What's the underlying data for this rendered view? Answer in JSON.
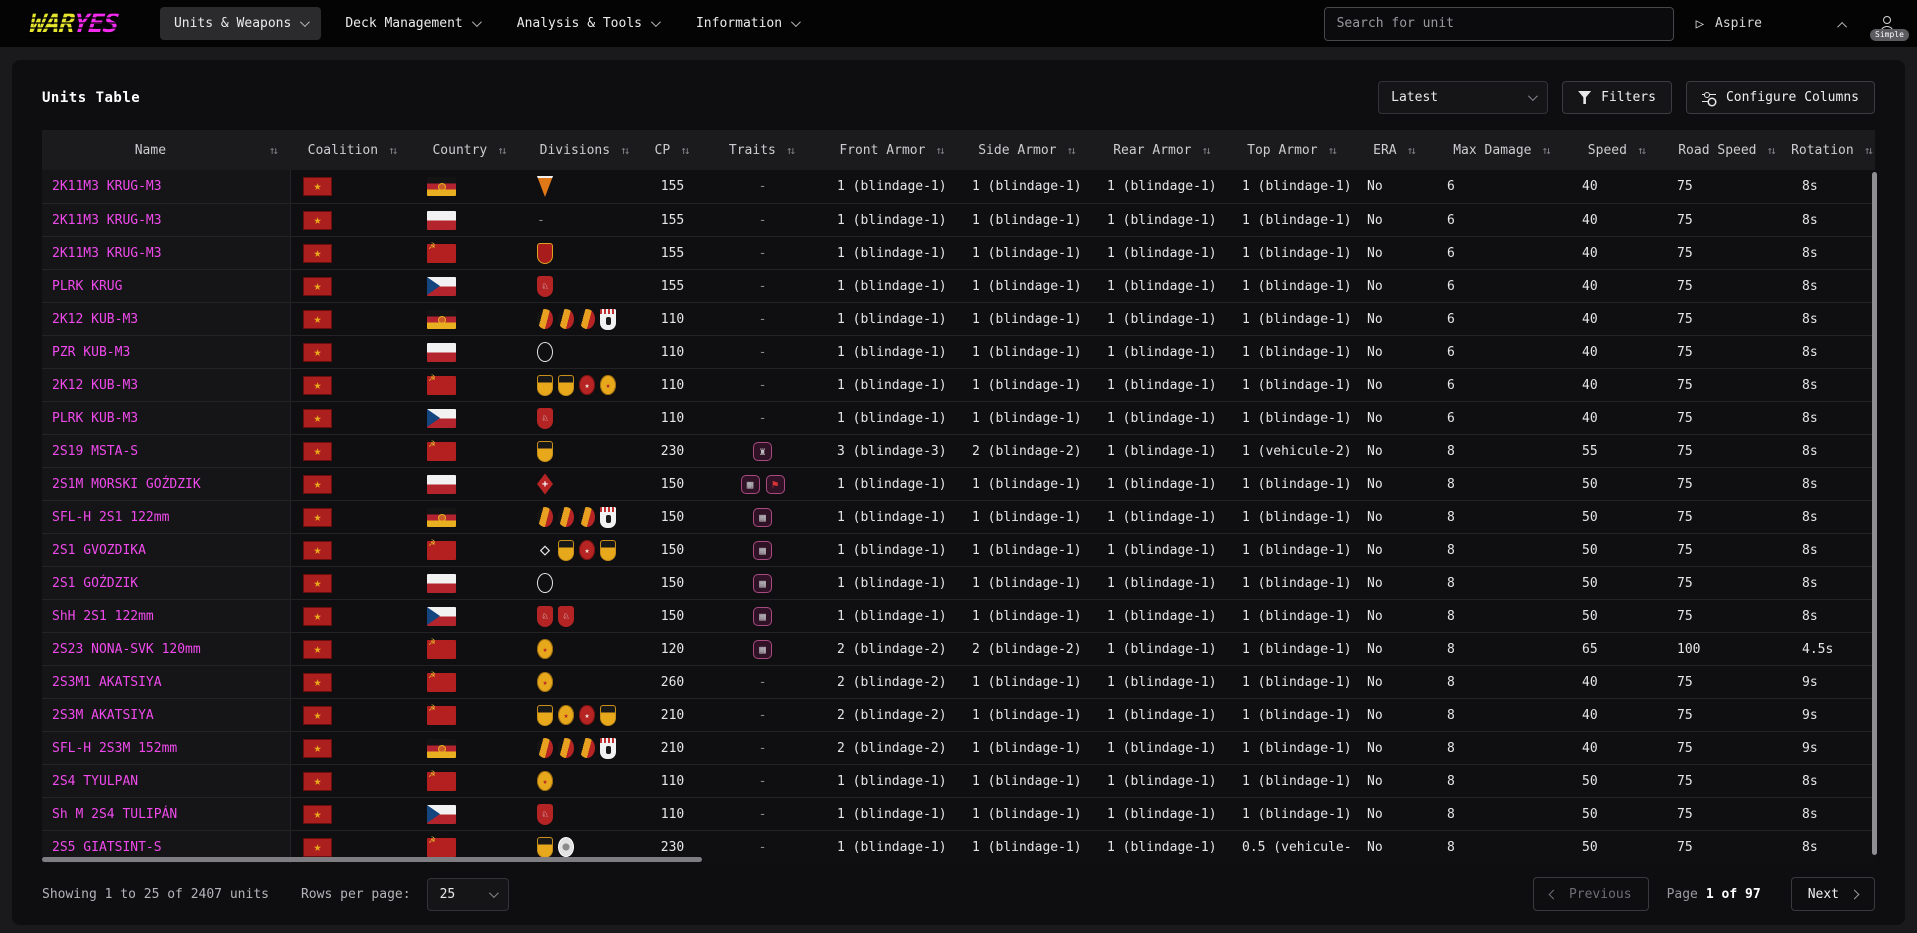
{
  "brand": {
    "war": "WAR",
    "yes": "YES"
  },
  "colors": {
    "logo_yellow": "#e6e62e",
    "logo_magenta": "#f52bf0",
    "unit_link": "#f04aec",
    "trait_border": "#a84a80"
  },
  "nav": [
    {
      "label": "Units & Weapons",
      "active": true
    },
    {
      "label": "Deck Management",
      "active": false
    },
    {
      "label": "Analysis & Tools",
      "active": false
    },
    {
      "label": "Information",
      "active": false
    }
  ],
  "topbar": {
    "search_placeholder": "Search for unit",
    "aspire_label": "Aspire",
    "user_badge": "Simple"
  },
  "page": {
    "title": "Units Table",
    "version_selected": "Latest",
    "filters_label": "Filters",
    "configure_label": "Configure Columns"
  },
  "table": {
    "sort_glyph": "↑↓",
    "columns": [
      {
        "key": "name",
        "label": "Name"
      },
      {
        "key": "coalition",
        "label": "Coalition"
      },
      {
        "key": "country",
        "label": "Country"
      },
      {
        "key": "divisions",
        "label": "Divisions"
      },
      {
        "key": "cp",
        "label": "CP"
      },
      {
        "key": "traits",
        "label": "Traits"
      },
      {
        "key": "front_armor",
        "label": "Front Armor"
      },
      {
        "key": "side_armor",
        "label": "Side Armor"
      },
      {
        "key": "rear_armor",
        "label": "Rear Armor"
      },
      {
        "key": "top_armor",
        "label": "Top Armor"
      },
      {
        "key": "era",
        "label": "ERA"
      },
      {
        "key": "max_damage",
        "label": "Max Damage"
      },
      {
        "key": "speed",
        "label": "Speed"
      },
      {
        "key": "road_speed",
        "label": "Road Speed"
      },
      {
        "key": "rotation",
        "label": "Rotation"
      }
    ],
    "rows": [
      {
        "name": "2K11M3 KRUG-M3",
        "coalition": "pact",
        "country": "ddr",
        "divisions": [
          "pennant"
        ],
        "cp": "155",
        "traits": [],
        "front_armor": "1 (blindage-1)",
        "side_armor": "1 (blindage-1)",
        "rear_armor": "1 (blindage-1)",
        "top_armor": "1 (blindage-1)",
        "era": "No",
        "max_damage": "6",
        "speed": "40",
        "road_speed": "75",
        "rotation": "8s"
      },
      {
        "name": "2K11M3 KRUG-M3",
        "coalition": "pact",
        "country": "pol",
        "divisions": [],
        "cp": "155",
        "traits": [],
        "front_armor": "1 (blindage-1)",
        "side_armor": "1 (blindage-1)",
        "rear_armor": "1 (blindage-1)",
        "top_armor": "1 (blindage-1)",
        "era": "No",
        "max_damage": "6",
        "speed": "40",
        "road_speed": "75",
        "rotation": "8s"
      },
      {
        "name": "2K11M3 KRUG-M3",
        "coalition": "pact",
        "country": "sov",
        "divisions": [
          "shield-red"
        ],
        "cp": "155",
        "traits": [],
        "front_armor": "1 (blindage-1)",
        "side_armor": "1 (blindage-1)",
        "rear_armor": "1 (blindage-1)",
        "top_armor": "1 (blindage-1)",
        "era": "No",
        "max_damage": "6",
        "speed": "40",
        "road_speed": "75",
        "rotation": "8s"
      },
      {
        "name": "PLRK KRUG",
        "coalition": "pact",
        "country": "cz",
        "divisions": [
          "cz"
        ],
        "cp": "155",
        "traits": [],
        "front_armor": "1 (blindage-1)",
        "side_armor": "1 (blindage-1)",
        "rear_armor": "1 (blindage-1)",
        "top_armor": "1 (blindage-1)",
        "era": "No",
        "max_damage": "6",
        "speed": "40",
        "road_speed": "75",
        "rotation": "8s"
      },
      {
        "name": "2K12 KUB-M3",
        "coalition": "pact",
        "country": "ddr",
        "divisions": [
          "round-ddr",
          "round-ddr",
          "round-ddr",
          "bear"
        ],
        "cp": "110",
        "traits": [],
        "front_armor": "1 (blindage-1)",
        "side_armor": "1 (blindage-1)",
        "rear_armor": "1 (blindage-1)",
        "top_armor": "1 (blindage-1)",
        "era": "No",
        "max_damage": "6",
        "speed": "40",
        "road_speed": "75",
        "rotation": "8s"
      },
      {
        "name": "PZR KUB-M3",
        "coalition": "pact",
        "country": "pol",
        "divisions": [
          "circle-outline"
        ],
        "cp": "110",
        "traits": [],
        "front_armor": "1 (blindage-1)",
        "side_armor": "1 (blindage-1)",
        "rear_armor": "1 (blindage-1)",
        "top_armor": "1 (blindage-1)",
        "era": "No",
        "max_damage": "6",
        "speed": "40",
        "road_speed": "75",
        "rotation": "8s"
      },
      {
        "name": "2K12 KUB-M3",
        "coalition": "pact",
        "country": "sov",
        "divisions": [
          "gold-shield",
          "gold-shield",
          "red-round",
          "gold-round"
        ],
        "cp": "110",
        "traits": [],
        "front_armor": "1 (blindage-1)",
        "side_armor": "1 (blindage-1)",
        "rear_armor": "1 (blindage-1)",
        "top_armor": "1 (blindage-1)",
        "era": "No",
        "max_damage": "6",
        "speed": "40",
        "road_speed": "75",
        "rotation": "8s"
      },
      {
        "name": "PLRK KUB-M3",
        "coalition": "pact",
        "country": "cz",
        "divisions": [
          "cz"
        ],
        "cp": "110",
        "traits": [],
        "front_armor": "1 (blindage-1)",
        "side_armor": "1 (blindage-1)",
        "rear_armor": "1 (blindage-1)",
        "top_armor": "1 (blindage-1)",
        "era": "No",
        "max_damage": "6",
        "speed": "40",
        "road_speed": "75",
        "rotation": "8s"
      },
      {
        "name": "2S19 MSTA-S",
        "coalition": "pact",
        "country": "sov",
        "divisions": [
          "gold-shield"
        ],
        "cp": "230",
        "traits": [
          "armor"
        ],
        "front_armor": "3 (blindage-3)",
        "side_armor": "2 (blindage-2)",
        "rear_armor": "1 (blindage-1)",
        "top_armor": "1 (vehicule-2)",
        "era": "No",
        "max_damage": "8",
        "speed": "55",
        "road_speed": "75",
        "rotation": "8s"
      },
      {
        "name": "2S1M MORSKI GOŹDZIK",
        "coalition": "pact",
        "country": "pol",
        "divisions": [
          "diamond-red"
        ],
        "cp": "150",
        "traits": [
          "net",
          "flag"
        ],
        "front_armor": "1 (blindage-1)",
        "side_armor": "1 (blindage-1)",
        "rear_armor": "1 (blindage-1)",
        "top_armor": "1 (blindage-1)",
        "era": "No",
        "max_damage": "8",
        "speed": "50",
        "road_speed": "75",
        "rotation": "8s"
      },
      {
        "name": "SFL-H 2S1 122mm",
        "coalition": "pact",
        "country": "ddr",
        "divisions": [
          "round-ddr",
          "round-ddr",
          "round-ddr",
          "bear"
        ],
        "cp": "150",
        "traits": [
          "net"
        ],
        "front_armor": "1 (blindage-1)",
        "side_armor": "1 (blindage-1)",
        "rear_armor": "1 (blindage-1)",
        "top_armor": "1 (blindage-1)",
        "era": "No",
        "max_damage": "8",
        "speed": "50",
        "road_speed": "75",
        "rotation": "8s"
      },
      {
        "name": "2S1 GVOZDIKA",
        "coalition": "pact",
        "country": "sov",
        "divisions": [
          "diamond-white",
          "gold-shield",
          "red-round",
          "gold-shield"
        ],
        "cp": "150",
        "traits": [
          "net"
        ],
        "front_armor": "1 (blindage-1)",
        "side_armor": "1 (blindage-1)",
        "rear_armor": "1 (blindage-1)",
        "top_armor": "1 (blindage-1)",
        "era": "No",
        "max_damage": "8",
        "speed": "50",
        "road_speed": "75",
        "rotation": "8s"
      },
      {
        "name": "2S1 GOŹDZIK",
        "coalition": "pact",
        "country": "pol",
        "divisions": [
          "circle-outline"
        ],
        "cp": "150",
        "traits": [
          "net"
        ],
        "front_armor": "1 (blindage-1)",
        "side_armor": "1 (blindage-1)",
        "rear_armor": "1 (blindage-1)",
        "top_armor": "1 (blindage-1)",
        "era": "No",
        "max_damage": "8",
        "speed": "50",
        "road_speed": "75",
        "rotation": "8s"
      },
      {
        "name": "ShH 2S1 122mm",
        "coalition": "pact",
        "country": "cz",
        "divisions": [
          "cz",
          "cz"
        ],
        "cp": "150",
        "traits": [
          "net"
        ],
        "front_armor": "1 (blindage-1)",
        "side_armor": "1 (blindage-1)",
        "rear_armor": "1 (blindage-1)",
        "top_armor": "1 (blindage-1)",
        "era": "No",
        "max_damage": "8",
        "speed": "50",
        "road_speed": "75",
        "rotation": "8s"
      },
      {
        "name": "2S23 NONA-SVK 120mm",
        "coalition": "pact",
        "country": "sov",
        "divisions": [
          "gold-round"
        ],
        "cp": "120",
        "traits": [
          "net"
        ],
        "front_armor": "2 (blindage-2)",
        "side_armor": "2 (blindage-2)",
        "rear_armor": "1 (blindage-1)",
        "top_armor": "1 (blindage-1)",
        "era": "No",
        "max_damage": "8",
        "speed": "65",
        "road_speed": "100",
        "rotation": "4.5s"
      },
      {
        "name": "2S3M1 AKATSIYA",
        "coalition": "pact",
        "country": "sov",
        "divisions": [
          "gold-round"
        ],
        "cp": "260",
        "traits": [],
        "front_armor": "2 (blindage-2)",
        "side_armor": "1 (blindage-1)",
        "rear_armor": "1 (blindage-1)",
        "top_armor": "1 (blindage-1)",
        "era": "No",
        "max_damage": "8",
        "speed": "40",
        "road_speed": "75",
        "rotation": "9s"
      },
      {
        "name": "2S3M AKATSIYA",
        "coalition": "pact",
        "country": "sov",
        "divisions": [
          "gold-shield",
          "gold-round",
          "red-round",
          "gold-shield"
        ],
        "cp": "210",
        "traits": [],
        "front_armor": "2 (blindage-2)",
        "side_armor": "1 (blindage-1)",
        "rear_armor": "1 (blindage-1)",
        "top_armor": "1 (blindage-1)",
        "era": "No",
        "max_damage": "8",
        "speed": "40",
        "road_speed": "75",
        "rotation": "9s"
      },
      {
        "name": "SFL-H 2S3M 152mm",
        "coalition": "pact",
        "country": "ddr",
        "divisions": [
          "round-ddr",
          "round-ddr",
          "round-ddr",
          "bear"
        ],
        "cp": "210",
        "traits": [],
        "front_armor": "2 (blindage-2)",
        "side_armor": "1 (blindage-1)",
        "rear_armor": "1 (blindage-1)",
        "top_armor": "1 (blindage-1)",
        "era": "No",
        "max_damage": "8",
        "speed": "40",
        "road_speed": "75",
        "rotation": "9s"
      },
      {
        "name": "2S4 TYULPAN",
        "coalition": "pact",
        "country": "sov",
        "divisions": [
          "gold-round"
        ],
        "cp": "110",
        "traits": [],
        "front_armor": "1 (blindage-1)",
        "side_armor": "1 (blindage-1)",
        "rear_armor": "1 (blindage-1)",
        "top_armor": "1 (blindage-1)",
        "era": "No",
        "max_damage": "8",
        "speed": "50",
        "road_speed": "75",
        "rotation": "8s"
      },
      {
        "name": "Sh M 2S4 TULIPÁN",
        "coalition": "pact",
        "country": "cz",
        "divisions": [
          "cz"
        ],
        "cp": "110",
        "traits": [],
        "front_armor": "1 (blindage-1)",
        "side_armor": "1 (blindage-1)",
        "rear_armor": "1 (blindage-1)",
        "top_armor": "1 (blindage-1)",
        "era": "No",
        "max_damage": "8",
        "speed": "50",
        "road_speed": "75",
        "rotation": "8s"
      },
      {
        "name": "2S5 GIATSINT-S",
        "coalition": "pact",
        "country": "sov",
        "divisions": [
          "gold-shield",
          "circle-emblem"
        ],
        "cp": "230",
        "traits": [],
        "front_armor": "1 (blindage-1)",
        "side_armor": "1 (blindage-1)",
        "rear_armor": "1 (blindage-1)",
        "top_armor": "0.5 (vehicule-",
        "era": "No",
        "max_damage": "8",
        "speed": "50",
        "road_speed": "75",
        "rotation": "8s"
      }
    ],
    "empty_cell": "-"
  },
  "footer": {
    "showing": "Showing 1 to 25 of 2407 units",
    "rows_per_page_label": "Rows per page:",
    "rows_per_page": "25",
    "previous_label": "Previous",
    "page_label": "Page",
    "page_value": "1 of 97",
    "next_label": "Next"
  }
}
